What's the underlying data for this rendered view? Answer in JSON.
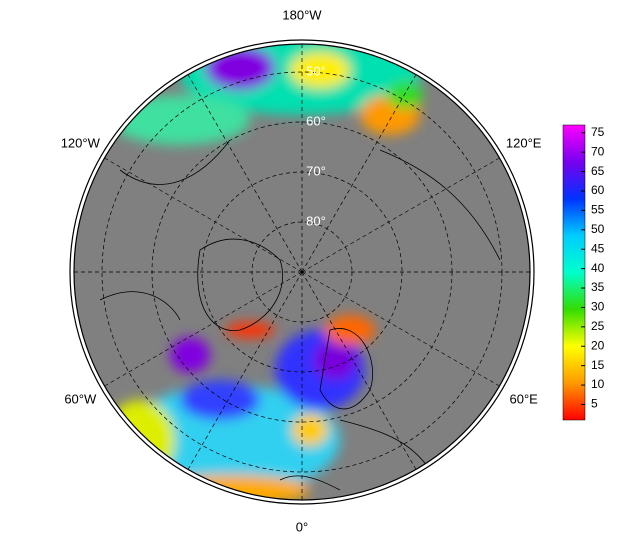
{
  "map": {
    "type": "polar-stereographic",
    "longitude_labels": [
      {
        "value": -180,
        "label": "180°W"
      },
      {
        "value": -120,
        "label": "120°W"
      },
      {
        "value": 120,
        "label": "120°E"
      },
      {
        "value": -60,
        "label": "60°W"
      },
      {
        "value": 60,
        "label": "60°E"
      },
      {
        "value": 0,
        "label": "0°"
      }
    ],
    "latitude_labels": [
      {
        "value": 50,
        "label": "50°"
      },
      {
        "value": 60,
        "label": "60°"
      },
      {
        "value": 70,
        "label": "70°"
      },
      {
        "value": 80,
        "label": "80°"
      }
    ],
    "colorbar": {
      "clim": [
        1,
        77
      ],
      "ticks": [
        5,
        10,
        15,
        20,
        25,
        30,
        35,
        40,
        45,
        50,
        55,
        60,
        65,
        70,
        75
      ],
      "colors": [
        "#ff0000",
        "#ff9900",
        "#ffff00",
        "#33dd00",
        "#00ffcc",
        "#00ccff",
        "#0033ff",
        "#7700ee",
        "#ff00ff"
      ]
    }
  }
}
